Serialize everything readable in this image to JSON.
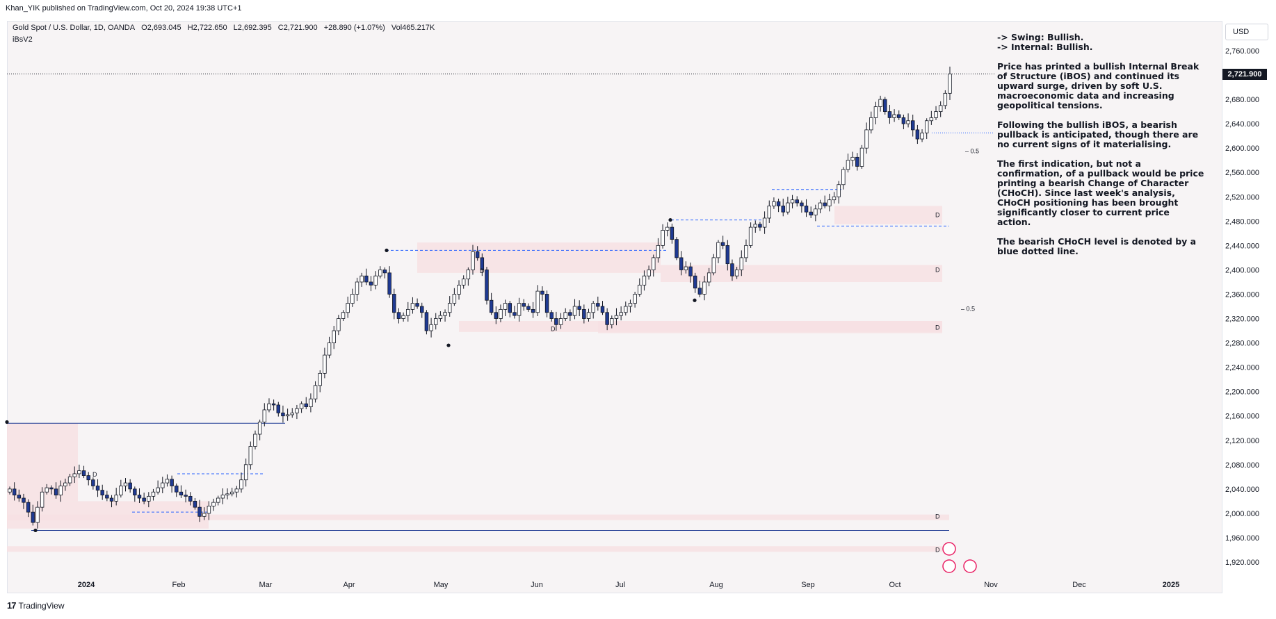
{
  "header": {
    "published": "Khan_YIK published on TradingView.com, Oct 20, 2024 19:38 UTC+1"
  },
  "legend": {
    "symbol": "Gold Spot / U.S. Dollar, 1D, OANDA",
    "open": "O2,693.045",
    "high": "H2,722.650",
    "low": "L2,692.395",
    "close": "C2,721.900",
    "change": "+28.890 (+1.07%)",
    "volume": "Vol465.217K",
    "indicator": "iBsV2"
  },
  "currency_button": "USD",
  "last_price_tag": "2,721.900",
  "annotation": {
    "p1": "-> Swing: Bullish.\n-> Internal: Bullish.",
    "p2": "Price has printed a bullish Internal Break of Structure (iBOS) and continued its upward surge, driven by soft U.S. macroeconomic data and increasing geopolitical tensions.",
    "p3": "Following the bullish iBOS, a bearish pullback is anticipated, though there are no current signs of it materialising.",
    "p4": "The first indication, but not a confirmation, of a pullback would be price printing a bearish Change of Character (CHoCH). Since last week's analysis, CHoCH positioning has been brought significantly closer to current price action.",
    "p5": "The bearish CHoCH level is denoted by a blue dotted line."
  },
  "footer": {
    "logo_text": "TradingView"
  },
  "colors": {
    "up_candle": "#ffffff",
    "down_candle": "#1f3a93",
    "candle_border": "#131722",
    "demand_zone": "#f7e1e3",
    "choch_line": "#2962ff",
    "background": "#f7f4f5"
  },
  "chart_data": {
    "type": "candlestick",
    "yaxis_ticks": [
      "2,760.000",
      "2,720.000",
      "2,680.000",
      "2,640.000",
      "2,600.000",
      "2,560.000",
      "2,520.000",
      "2,480.000",
      "2,440.000",
      "2,400.000",
      "2,360.000",
      "2,320.000",
      "2,280.000",
      "2,240.000",
      "2,200.000",
      "2,160.000",
      "2,120.000",
      "2,080.000",
      "2,040.000",
      "2,000.000",
      "1,960.000",
      "1,920.000"
    ],
    "xaxis_ticks": [
      "2024",
      "Feb",
      "Mar",
      "Apr",
      "May",
      "Jun",
      "Jul",
      "Aug",
      "Sep",
      "Oct",
      "Nov",
      "Dec",
      "2025"
    ],
    "ylim": [
      1905,
      2785
    ],
    "last_price": 2721.9,
    "close_series": [
      2040,
      2030,
      2025,
      2018,
      2002,
      1985,
      2010,
      2035,
      2042,
      2040,
      2030,
      2045,
      2050,
      2060,
      2065,
      2070,
      2062,
      2055,
      2045,
      2038,
      2030,
      2025,
      2020,
      2030,
      2045,
      2050,
      2040,
      2030,
      2025,
      2020,
      2028,
      2035,
      2042,
      2050,
      2056,
      2045,
      2035,
      2030,
      2028,
      2020,
      2010,
      1995,
      2000,
      2012,
      2018,
      2025,
      2030,
      2032,
      2035,
      2040,
      2055,
      2080,
      2110,
      2130,
      2150,
      2170,
      2180,
      2178,
      2165,
      2160,
      2162,
      2165,
      2172,
      2180,
      2175,
      2188,
      2210,
      2230,
      2260,
      2280,
      2300,
      2320,
      2330,
      2345,
      2360,
      2380,
      2390,
      2380,
      2375,
      2390,
      2400,
      2395,
      2360,
      2330,
      2320,
      2325,
      2335,
      2345,
      2340,
      2330,
      2300,
      2310,
      2320,
      2325,
      2330,
      2345,
      2360,
      2375,
      2385,
      2400,
      2430,
      2420,
      2400,
      2350,
      2330,
      2320,
      2335,
      2345,
      2330,
      2325,
      2345,
      2340,
      2335,
      2330,
      2365,
      2360,
      2330,
      2320,
      2310,
      2320,
      2330,
      2325,
      2340,
      2335,
      2320,
      2330,
      2345,
      2340,
      2330,
      2310,
      2320,
      2325,
      2330,
      2340,
      2345,
      2360,
      2375,
      2390,
      2400,
      2420,
      2440,
      2465,
      2470,
      2450,
      2420,
      2400,
      2405,
      2390,
      2370,
      2360,
      2380,
      2395,
      2420,
      2445,
      2440,
      2410,
      2390,
      2400,
      2420,
      2440,
      2470,
      2475,
      2470,
      2485,
      2505,
      2512,
      2505,
      2495,
      2510,
      2515,
      2510,
      2505,
      2495,
      2490,
      2500,
      2510,
      2505,
      2515,
      2520,
      2540,
      2565,
      2580,
      2585,
      2570,
      2600,
      2630,
      2650,
      2668,
      2680,
      2660,
      2650,
      2655,
      2650,
      2640,
      2645,
      2630,
      2615,
      2625,
      2645,
      2650,
      2660,
      2670,
      2690,
      2721.9
    ],
    "annotations": [
      "D",
      "D",
      "D",
      "D",
      "D",
      "D",
      "D",
      "D",
      "0.5",
      "0.5"
    ]
  }
}
